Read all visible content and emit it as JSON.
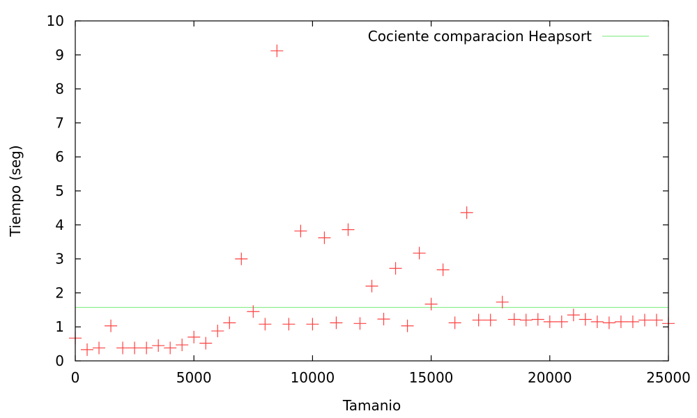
{
  "chart_data": {
    "type": "scatter",
    "title": "",
    "xlabel": "Tamanio",
    "ylabel": "Tiempo (seg)",
    "xlim": [
      0,
      25000
    ],
    "ylim": [
      0,
      10
    ],
    "x_ticks": [
      "0",
      "5000",
      "10000",
      "15000",
      "20000",
      "25000"
    ],
    "y_ticks": [
      "0",
      "1",
      "2",
      "3",
      "4",
      "5",
      "6",
      "7",
      "8",
      "9",
      "10"
    ],
    "grid": false,
    "legend_position": "top-right",
    "series": [
      {
        "type": "line",
        "name": "Cociente comparacion Heapsort",
        "color": "#90ee90",
        "y": 1.57
      },
      {
        "type": "scatter",
        "marker": "plus",
        "color": "#ff4040",
        "points": [
          [
            0,
            0.67
          ],
          [
            500,
            0.33
          ],
          [
            1000,
            0.38
          ],
          [
            1500,
            1.03
          ],
          [
            2000,
            0.38
          ],
          [
            2500,
            0.38
          ],
          [
            3000,
            0.38
          ],
          [
            3500,
            0.45
          ],
          [
            4000,
            0.38
          ],
          [
            4500,
            0.47
          ],
          [
            5000,
            0.7
          ],
          [
            5500,
            0.52
          ],
          [
            6000,
            0.88
          ],
          [
            6500,
            1.12
          ],
          [
            7000,
            3.0
          ],
          [
            7500,
            1.45
          ],
          [
            8000,
            1.08
          ],
          [
            8500,
            9.12
          ],
          [
            9000,
            1.08
          ],
          [
            9500,
            3.82
          ],
          [
            10000,
            1.08
          ],
          [
            10500,
            3.62
          ],
          [
            11000,
            1.12
          ],
          [
            11500,
            3.86
          ],
          [
            12000,
            1.1
          ],
          [
            12500,
            2.2
          ],
          [
            13000,
            1.23
          ],
          [
            13500,
            2.72
          ],
          [
            14000,
            1.03
          ],
          [
            14500,
            3.17
          ],
          [
            15000,
            1.67
          ],
          [
            15500,
            2.68
          ],
          [
            16000,
            1.12
          ],
          [
            16500,
            4.36
          ],
          [
            17000,
            1.2
          ],
          [
            17500,
            1.2
          ],
          [
            18000,
            1.73
          ],
          [
            18500,
            1.22
          ],
          [
            19000,
            1.2
          ],
          [
            19500,
            1.22
          ],
          [
            20000,
            1.15
          ],
          [
            20500,
            1.15
          ],
          [
            21000,
            1.35
          ],
          [
            21500,
            1.22
          ],
          [
            22000,
            1.15
          ],
          [
            22500,
            1.12
          ],
          [
            23000,
            1.15
          ],
          [
            23500,
            1.15
          ],
          [
            24000,
            1.2
          ],
          [
            24500,
            1.2
          ],
          [
            25000,
            1.1
          ]
        ]
      }
    ]
  }
}
